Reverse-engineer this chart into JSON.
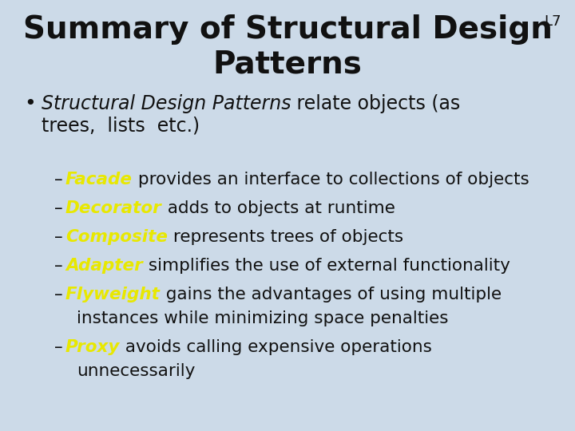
{
  "title_line1": "Summary of Structural Design",
  "title_line2": "Patterns",
  "slide_label": "L7",
  "background_color": "#ccdae8",
  "title_color": "#111111",
  "yellow_color": "#e8e800",
  "title_fontsize": 28,
  "label_fontsize": 13,
  "bullet_fontsize": 17,
  "sub_fontsize": 15.5,
  "bullet_italic": "Structural Design Patterns",
  "bullet_normal": " relate objects (as",
  "bullet_line2": "trees,  lists  etc.)",
  "sub_bullets": [
    {
      "keyword": "Facade",
      "rest": " provides an interface to collections of objects"
    },
    {
      "keyword": "Decorator",
      "rest": " adds to objects at runtime"
    },
    {
      "keyword": "Composite",
      "rest": " represents trees of objects"
    },
    {
      "keyword": "Adapter",
      "rest": " simplifies the use of external functionality"
    },
    {
      "keyword": "Flyweight",
      "rest": " gains the advantages of using multiple"
    },
    {
      "keyword": "",
      "rest": "instances while minimizing space penalties"
    },
    {
      "keyword": "Proxy",
      "rest": " avoids calling expensive operations"
    },
    {
      "keyword": "",
      "rest": "unnecessarily"
    }
  ]
}
